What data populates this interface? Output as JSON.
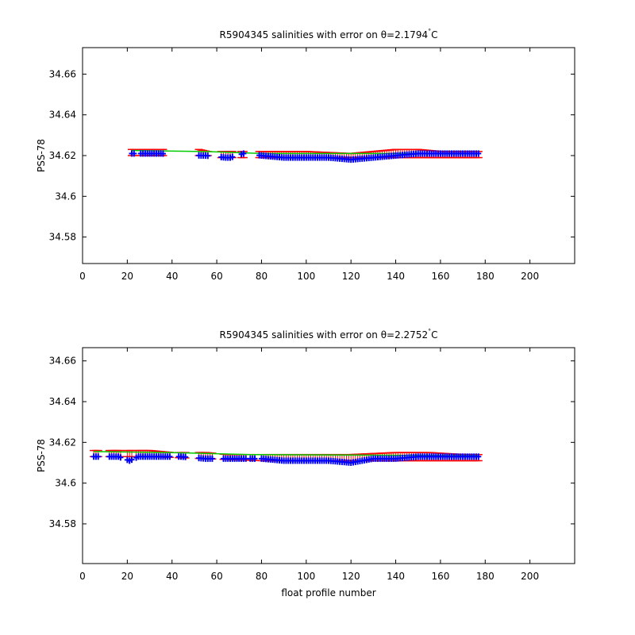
{
  "figure": {
    "xlabel_shared": "float profile number",
    "colors": {
      "salinity": "#0000ff",
      "error_bars": "#ff0000",
      "fit_line": "#00cc00",
      "axes": "#000000"
    }
  },
  "chart_data": [
    {
      "type": "scatter",
      "title": "R5904345 salinities with error on θ=2.1794°C",
      "title_main": "R5904345 salinities with error on θ=2.1794",
      "title_unit": "C",
      "xlabel": "",
      "ylabel": "PSS-78",
      "xlim": [
        0,
        220
      ],
      "ylim": [
        34.567,
        34.673
      ],
      "xticks": [
        0,
        20,
        40,
        60,
        80,
        100,
        120,
        140,
        160,
        180,
        200
      ],
      "xtick_labels": [
        "0",
        "20",
        "40",
        "60",
        "80",
        "100",
        "120",
        "140",
        "160",
        "180",
        "200"
      ],
      "yticks": [
        34.58,
        34.6,
        34.62,
        34.64,
        34.66
      ],
      "ytick_labels": [
        "34.58",
        "34.6",
        "34.62",
        "34.64",
        "34.66"
      ],
      "grid": false,
      "profile_ranges": [
        [
          22,
          23
        ],
        [
          26,
          36
        ],
        [
          52,
          56
        ],
        [
          62,
          67
        ],
        [
          71,
          72
        ],
        [
          79,
          177
        ]
      ],
      "series": [
        {
          "role": "salinity",
          "marker": "+",
          "x": [
            22,
            23,
            28,
            33,
            35,
            53,
            55,
            64,
            66,
            72,
            80,
            90,
            100,
            110,
            120,
            130,
            140,
            150,
            160,
            170,
            177
          ],
          "y": [
            34.621,
            34.621,
            34.621,
            34.621,
            34.621,
            34.62,
            34.62,
            34.619,
            34.619,
            34.621,
            34.62,
            34.619,
            34.619,
            34.619,
            34.618,
            34.619,
            34.62,
            34.621,
            34.621,
            34.621,
            34.621
          ]
        },
        {
          "role": "error_bar_upper",
          "x": [
            22,
            35,
            52,
            56,
            62,
            67,
            80,
            100,
            120,
            130,
            140,
            150,
            160,
            170,
            177
          ],
          "y": [
            34.623,
            34.623,
            34.623,
            34.622,
            34.622,
            34.622,
            34.622,
            34.622,
            34.621,
            34.622,
            34.623,
            34.623,
            34.622,
            34.622,
            34.622
          ]
        },
        {
          "role": "error_bar_lower",
          "x": [
            22,
            35,
            52,
            56,
            62,
            67,
            80,
            100,
            120,
            140,
            160,
            177
          ],
          "y": [
            34.62,
            34.62,
            34.62,
            34.62,
            34.619,
            34.619,
            34.619,
            34.619,
            34.619,
            34.619,
            34.619,
            34.619
          ]
        },
        {
          "role": "fit_line",
          "x": [
            22,
            55,
            80,
            177
          ],
          "y": [
            34.6225,
            34.622,
            34.621,
            34.621
          ]
        }
      ]
    },
    {
      "type": "scatter",
      "title": "R5904345 salinities with error on θ=2.2752°C",
      "title_main": "R5904345 salinities with error on θ=2.2752",
      "title_unit": "C",
      "xlabel": "float profile number",
      "ylabel": "PSS-78",
      "xlim": [
        0,
        220
      ],
      "ylim": [
        34.5605,
        34.6665
      ],
      "xticks": [
        0,
        20,
        40,
        60,
        80,
        100,
        120,
        140,
        160,
        180,
        200
      ],
      "xtick_labels": [
        "0",
        "20",
        "40",
        "60",
        "80",
        "100",
        "120",
        "140",
        "160",
        "180",
        "200"
      ],
      "yticks": [
        34.58,
        34.6,
        34.62,
        34.64,
        34.66
      ],
      "ytick_labels": [
        "34.58",
        "34.6",
        "34.62",
        "34.64",
        "34.66"
      ],
      "grid": false,
      "profile_ranges": [
        [
          5,
          7
        ],
        [
          12,
          17
        ],
        [
          20,
          22
        ],
        [
          24,
          39
        ],
        [
          43,
          46
        ],
        [
          52,
          58
        ],
        [
          63,
          73
        ],
        [
          75,
          77
        ],
        [
          80,
          177
        ]
      ],
      "series": [
        {
          "role": "salinity",
          "marker": "+",
          "x": [
            6,
            13,
            16,
            21,
            25,
            30,
            35,
            44,
            55,
            65,
            72,
            80,
            90,
            100,
            110,
            120,
            130,
            140,
            150,
            160,
            170,
            177
          ],
          "y": [
            34.613,
            34.613,
            34.613,
            34.611,
            34.613,
            34.613,
            34.613,
            34.613,
            34.612,
            34.612,
            34.612,
            34.612,
            34.611,
            34.611,
            34.611,
            34.61,
            34.612,
            34.612,
            34.613,
            34.613,
            34.613,
            34.613
          ]
        },
        {
          "role": "error_bar_upper",
          "x": [
            6,
            20,
            30,
            40,
            55,
            65,
            80,
            100,
            120,
            140,
            155,
            170,
            177
          ],
          "y": [
            34.616,
            34.616,
            34.616,
            34.615,
            34.615,
            34.614,
            34.614,
            34.614,
            34.614,
            34.615,
            34.615,
            34.614,
            34.614
          ]
        },
        {
          "role": "error_bar_lower",
          "x": [
            6,
            30,
            55,
            80,
            120,
            160,
            177
          ],
          "y": [
            34.613,
            34.613,
            34.612,
            34.611,
            34.611,
            34.611,
            34.611
          ]
        },
        {
          "role": "fit_line",
          "x": [
            5,
            40,
            75,
            177
          ],
          "y": [
            34.6155,
            34.615,
            34.614,
            34.6135
          ]
        }
      ]
    }
  ]
}
